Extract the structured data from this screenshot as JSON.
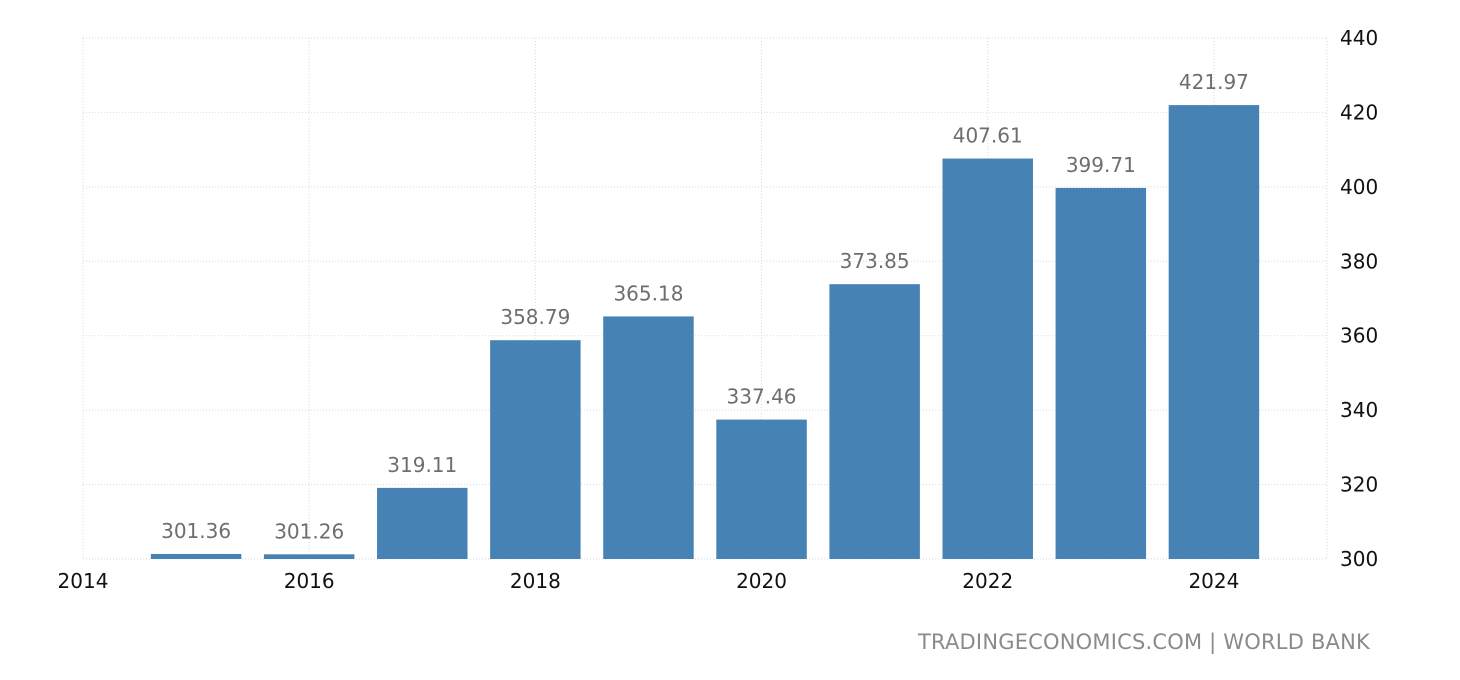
{
  "chart_data": {
    "type": "bar",
    "title": "",
    "xlabel": "",
    "ylabel": "",
    "categories": [
      "2015",
      "2016",
      "2017",
      "2018",
      "2019",
      "2020",
      "2021",
      "2022",
      "2023",
      "2024"
    ],
    "values": [
      301.36,
      301.26,
      319.11,
      358.79,
      365.18,
      337.46,
      373.85,
      407.61,
      399.71,
      421.97
    ],
    "data_labels": [
      "301.36",
      "301.26",
      "319.11",
      "358.79",
      "365.18",
      "337.46",
      "373.85",
      "407.61",
      "399.71",
      "421.97"
    ],
    "x_ticks": [
      "2014",
      "2016",
      "2018",
      "2020",
      "2022",
      "2024"
    ],
    "y_ticks": [
      "300",
      "320",
      "340",
      "360",
      "380",
      "400",
      "420",
      "440"
    ],
    "ylim": [
      300,
      440
    ],
    "xlim": [
      2014,
      2025
    ],
    "y_axis_side": "right",
    "grid": true,
    "legend": "none",
    "bar_color": "#4682b4"
  },
  "source": "TRADINGECONOMICS.COM | WORLD BANK"
}
